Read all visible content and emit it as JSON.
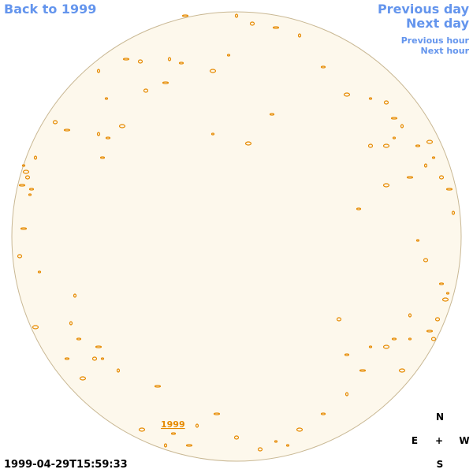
{
  "navigation": {
    "back": "Back to 1999",
    "previous_day": "Previous day",
    "next_day": "Next day",
    "previous_hour": "Previous hour",
    "next_hour": "Next hour"
  },
  "disk_label": "1999",
  "timestamp": "1999-04-29T15:59:33",
  "compass": {
    "north": "N",
    "east": "E",
    "center": "+",
    "west": "W",
    "south": "S"
  }
}
